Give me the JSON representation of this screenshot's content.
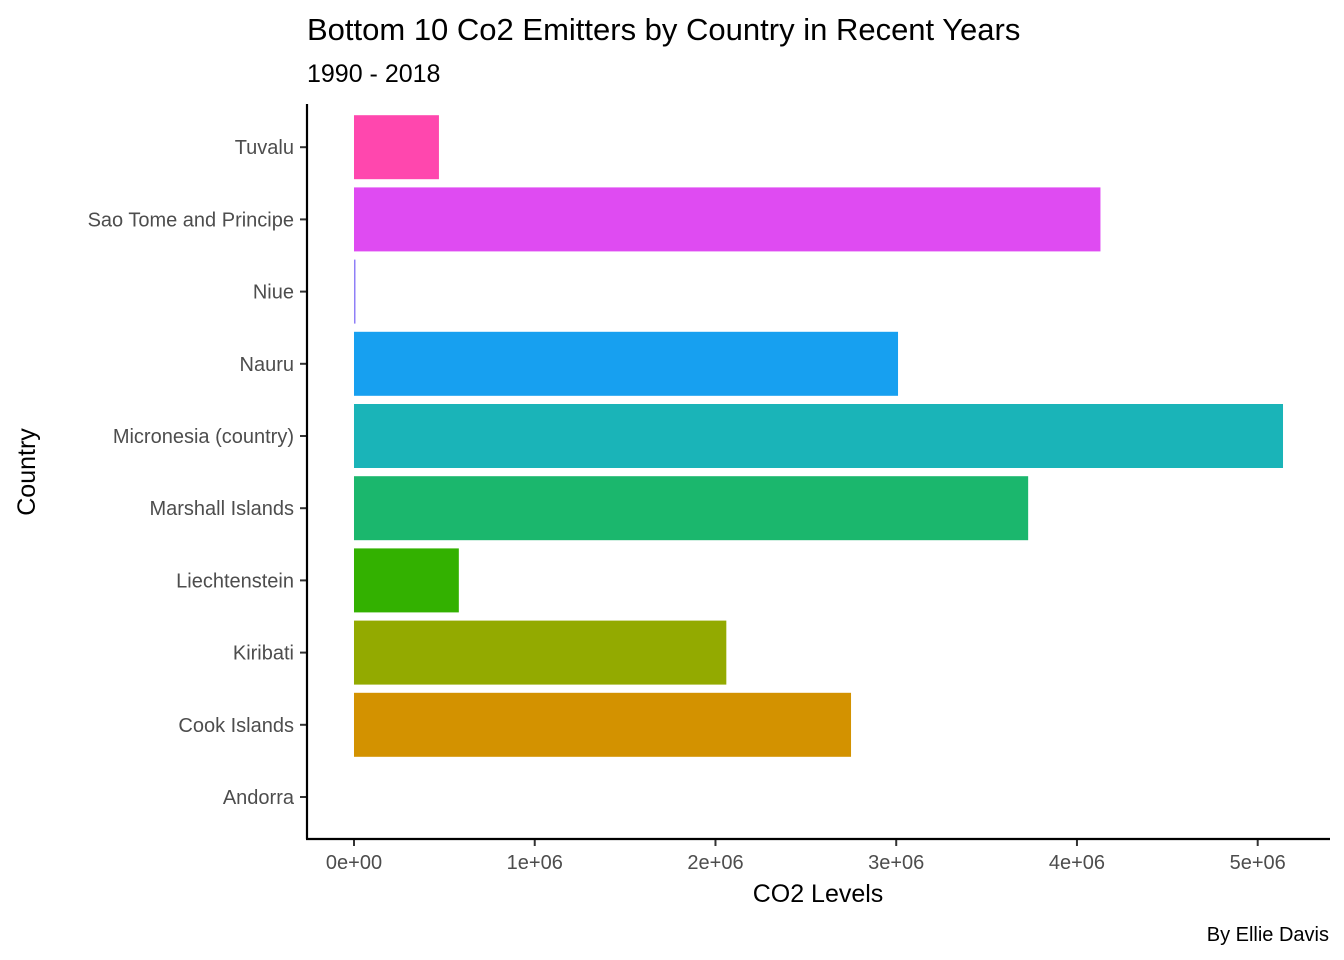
{
  "chart_data": {
    "type": "bar",
    "orientation": "horizontal",
    "title": "Bottom 10 Co2 Emitters by Country in Recent Years",
    "subtitle": "1990 - 2018",
    "xlabel": "CO2 Levels",
    "ylabel": "Country",
    "caption": "By Ellie Davis",
    "xlim": [
      -260000,
      5400000
    ],
    "x_ticks": [
      0,
      1000000,
      2000000,
      3000000,
      4000000,
      5000000
    ],
    "x_tick_labels": [
      "0e+00",
      "1e+06",
      "2e+06",
      "3e+06",
      "4e+06",
      "5e+06"
    ],
    "grid": false,
    "legend": "none",
    "categories": [
      "Andorra",
      "Cook Islands",
      "Kiribati",
      "Liechtenstein",
      "Marshall Islands",
      "Micronesia (country)",
      "Nauru",
      "Niue",
      "Sao Tome and Principe",
      "Tuvalu"
    ],
    "values": [
      0,
      2750000,
      2060000,
      580000,
      3730000,
      5140000,
      3010000,
      8000,
      4130000,
      470000
    ],
    "colors": [
      "#F8766D",
      "#D39200",
      "#93AA00",
      "#33B100",
      "#1BB76D",
      "#1AB4B8",
      "#17A0F0",
      "#8F7FF7",
      "#DF4BF2",
      "#FF47AE"
    ]
  }
}
